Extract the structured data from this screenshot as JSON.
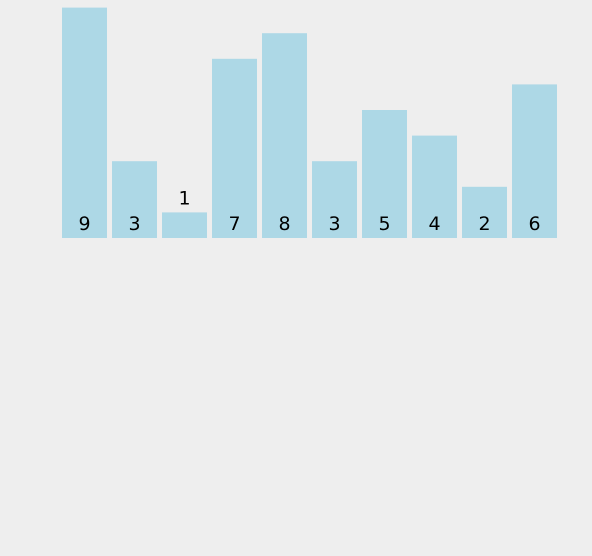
{
  "chart_data": {
    "type": "bar",
    "categories": [
      "9",
      "3",
      "1",
      "7",
      "8",
      "3",
      "5",
      "4",
      "2",
      "6"
    ],
    "values": [
      9,
      3,
      1,
      7,
      8,
      3,
      5,
      4,
      2,
      6
    ],
    "title": "",
    "xlabel": "",
    "ylabel": "",
    "ylim": [
      0,
      9
    ],
    "grid": false,
    "legend": "none",
    "bar_color": "#add8e6",
    "background_color": "#eeeeee",
    "label_color": "#000000"
  }
}
